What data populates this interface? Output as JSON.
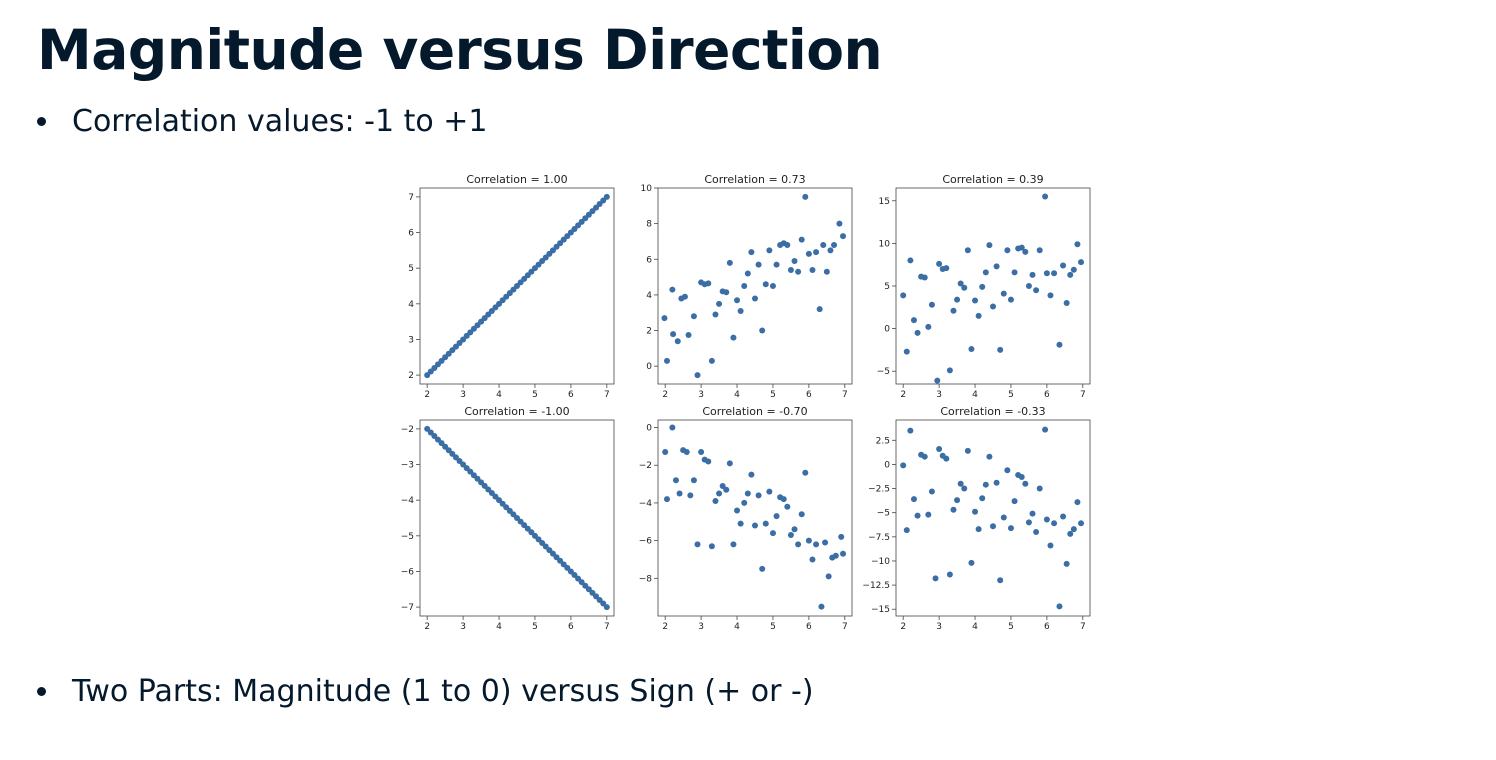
{
  "slide": {
    "title": "Magnitude versus Direction",
    "bullets": [
      "Correlation values: -1 to +1",
      "Two Parts: Magnitude (1 to 0) versus Sign (+ or -)"
    ]
  },
  "colors": {
    "marker": "#3a6ea5",
    "text": "#05192d"
  },
  "chart_data": [
    {
      "type": "scatter",
      "title": "Correlation = 1.00",
      "xlim": [
        1.8,
        7.2
      ],
      "ylim": [
        1.75,
        7.25
      ],
      "xticks": [
        2,
        3,
        4,
        5,
        6,
        7
      ],
      "yticks": [
        2,
        3,
        4,
        5,
        6,
        7
      ],
      "points": [
        [
          2,
          2
        ],
        [
          2.1,
          2.1
        ],
        [
          2.2,
          2.2
        ],
        [
          2.3,
          2.3
        ],
        [
          2.4,
          2.4
        ],
        [
          2.5,
          2.5
        ],
        [
          2.6,
          2.6
        ],
        [
          2.7,
          2.7
        ],
        [
          2.8,
          2.8
        ],
        [
          2.9,
          2.9
        ],
        [
          3,
          3
        ],
        [
          3.1,
          3.1
        ],
        [
          3.2,
          3.2
        ],
        [
          3.3,
          3.3
        ],
        [
          3.4,
          3.4
        ],
        [
          3.5,
          3.5
        ],
        [
          3.6,
          3.6
        ],
        [
          3.7,
          3.7
        ],
        [
          3.8,
          3.8
        ],
        [
          3.9,
          3.9
        ],
        [
          4,
          4
        ],
        [
          4.1,
          4.1
        ],
        [
          4.2,
          4.2
        ],
        [
          4.3,
          4.3
        ],
        [
          4.4,
          4.4
        ],
        [
          4.5,
          4.5
        ],
        [
          4.6,
          4.6
        ],
        [
          4.7,
          4.7
        ],
        [
          4.8,
          4.8
        ],
        [
          4.9,
          4.9
        ],
        [
          5,
          5
        ],
        [
          5.1,
          5.1
        ],
        [
          5.2,
          5.2
        ],
        [
          5.3,
          5.3
        ],
        [
          5.4,
          5.4
        ],
        [
          5.5,
          5.5
        ],
        [
          5.6,
          5.6
        ],
        [
          5.7,
          5.7
        ],
        [
          5.8,
          5.8
        ],
        [
          5.9,
          5.9
        ],
        [
          6,
          6
        ],
        [
          6.1,
          6.1
        ],
        [
          6.2,
          6.2
        ],
        [
          6.3,
          6.3
        ],
        [
          6.4,
          6.4
        ],
        [
          6.5,
          6.5
        ],
        [
          6.6,
          6.6
        ],
        [
          6.7,
          6.7
        ],
        [
          6.8,
          6.8
        ],
        [
          6.9,
          6.9
        ],
        [
          7,
          7
        ]
      ]
    },
    {
      "type": "scatter",
      "title": "Correlation = 0.73",
      "xlim": [
        1.8,
        7.2
      ],
      "ylim": [
        -1.0,
        10.0
      ],
      "xticks": [
        2,
        3,
        4,
        5,
        6,
        7
      ],
      "yticks": [
        0,
        2,
        4,
        6,
        8,
        10
      ],
      "points": [
        [
          1.98,
          2.7
        ],
        [
          2.05,
          0.3
        ],
        [
          2.2,
          4.3
        ],
        [
          2.22,
          1.8
        ],
        [
          2.35,
          1.4
        ],
        [
          2.45,
          3.8
        ],
        [
          2.55,
          3.9
        ],
        [
          2.65,
          1.75
        ],
        [
          2.8,
          2.8
        ],
        [
          2.9,
          -0.5
        ],
        [
          3.0,
          4.7
        ],
        [
          3.1,
          4.6
        ],
        [
          3.2,
          4.65
        ],
        [
          3.3,
          0.3
        ],
        [
          3.4,
          2.9
        ],
        [
          3.5,
          3.5
        ],
        [
          3.6,
          4.2
        ],
        [
          3.7,
          4.15
        ],
        [
          3.8,
          5.8
        ],
        [
          3.9,
          1.6
        ],
        [
          4.0,
          3.7
        ],
        [
          4.1,
          3.1
        ],
        [
          4.2,
          4.5
        ],
        [
          4.3,
          5.2
        ],
        [
          4.4,
          6.4
        ],
        [
          4.5,
          3.8
        ],
        [
          4.6,
          5.7
        ],
        [
          4.7,
          2.0
        ],
        [
          4.8,
          4.6
        ],
        [
          4.9,
          6.5
        ],
        [
          5.0,
          4.5
        ],
        [
          5.1,
          5.7
        ],
        [
          5.2,
          6.8
        ],
        [
          5.3,
          6.9
        ],
        [
          5.4,
          6.8
        ],
        [
          5.5,
          5.4
        ],
        [
          5.6,
          5.9
        ],
        [
          5.7,
          5.3
        ],
        [
          5.8,
          7.1
        ],
        [
          5.9,
          9.5
        ],
        [
          6.0,
          6.3
        ],
        [
          6.1,
          5.4
        ],
        [
          6.2,
          6.4
        ],
        [
          6.3,
          3.2
        ],
        [
          6.4,
          6.8
        ],
        [
          6.5,
          5.3
        ],
        [
          6.6,
          6.5
        ],
        [
          6.7,
          6.8
        ],
        [
          6.85,
          8.0
        ],
        [
          6.95,
          7.3
        ]
      ]
    },
    {
      "type": "scatter",
      "title": "Correlation = 0.39",
      "xlim": [
        1.8,
        7.2
      ],
      "ylim": [
        -6.5,
        16.5
      ],
      "xticks": [
        2,
        3,
        4,
        5,
        6,
        7
      ],
      "yticks": [
        -5,
        0,
        5,
        10,
        15
      ],
      "points": [
        [
          2.0,
          3.9
        ],
        [
          2.1,
          -2.7
        ],
        [
          2.2,
          8.0
        ],
        [
          2.3,
          1.0
        ],
        [
          2.4,
          -0.5
        ],
        [
          2.5,
          6.1
        ],
        [
          2.6,
          6.0
        ],
        [
          2.7,
          0.2
        ],
        [
          2.8,
          2.8
        ],
        [
          2.95,
          -6.1
        ],
        [
          3.0,
          7.6
        ],
        [
          3.1,
          7.0
        ],
        [
          3.2,
          7.1
        ],
        [
          3.3,
          -4.9
        ],
        [
          3.4,
          2.1
        ],
        [
          3.5,
          3.4
        ],
        [
          3.6,
          5.3
        ],
        [
          3.7,
          4.8
        ],
        [
          3.8,
          9.2
        ],
        [
          3.9,
          -2.4
        ],
        [
          4.0,
          3.3
        ],
        [
          4.1,
          1.5
        ],
        [
          4.2,
          4.9
        ],
        [
          4.3,
          6.6
        ],
        [
          4.4,
          9.8
        ],
        [
          4.5,
          2.6
        ],
        [
          4.6,
          7.3
        ],
        [
          4.7,
          -2.5
        ],
        [
          4.8,
          4.1
        ],
        [
          4.9,
          9.2
        ],
        [
          5.0,
          3.4
        ],
        [
          5.1,
          6.6
        ],
        [
          5.2,
          9.4
        ],
        [
          5.3,
          9.5
        ],
        [
          5.4,
          9.0
        ],
        [
          5.5,
          5.0
        ],
        [
          5.6,
          6.3
        ],
        [
          5.7,
          4.5
        ],
        [
          5.8,
          9.2
        ],
        [
          5.95,
          15.5
        ],
        [
          6.0,
          6.5
        ],
        [
          6.1,
          3.9
        ],
        [
          6.2,
          6.5
        ],
        [
          6.35,
          -1.9
        ],
        [
          6.45,
          7.4
        ],
        [
          6.55,
          3.0
        ],
        [
          6.65,
          6.3
        ],
        [
          6.75,
          6.9
        ],
        [
          6.85,
          9.9
        ],
        [
          6.95,
          7.8
        ]
      ]
    },
    {
      "type": "scatter",
      "title": "Correlation = -1.00",
      "xlim": [
        1.8,
        7.2
      ],
      "ylim": [
        -7.25,
        -1.75
      ],
      "xticks": [
        2,
        3,
        4,
        5,
        6,
        7
      ],
      "yticks": [
        -2,
        -3,
        -4,
        -5,
        -6,
        -7
      ],
      "points": [
        [
          2,
          -2
        ],
        [
          2.1,
          -2.1
        ],
        [
          2.2,
          -2.2
        ],
        [
          2.3,
          -2.3
        ],
        [
          2.4,
          -2.4
        ],
        [
          2.5,
          -2.5
        ],
        [
          2.6,
          -2.6
        ],
        [
          2.7,
          -2.7
        ],
        [
          2.8,
          -2.8
        ],
        [
          2.9,
          -2.9
        ],
        [
          3,
          -3
        ],
        [
          3.1,
          -3.1
        ],
        [
          3.2,
          -3.2
        ],
        [
          3.3,
          -3.3
        ],
        [
          3.4,
          -3.4
        ],
        [
          3.5,
          -3.5
        ],
        [
          3.6,
          -3.6
        ],
        [
          3.7,
          -3.7
        ],
        [
          3.8,
          -3.8
        ],
        [
          3.9,
          -3.9
        ],
        [
          4,
          -4
        ],
        [
          4.1,
          -4.1
        ],
        [
          4.2,
          -4.2
        ],
        [
          4.3,
          -4.3
        ],
        [
          4.4,
          -4.4
        ],
        [
          4.5,
          -4.5
        ],
        [
          4.6,
          -4.6
        ],
        [
          4.7,
          -4.7
        ],
        [
          4.8,
          -4.8
        ],
        [
          4.9,
          -4.9
        ],
        [
          5,
          -5
        ],
        [
          5.1,
          -5.1
        ],
        [
          5.2,
          -5.2
        ],
        [
          5.3,
          -5.3
        ],
        [
          5.4,
          -5.4
        ],
        [
          5.5,
          -5.5
        ],
        [
          5.6,
          -5.6
        ],
        [
          5.7,
          -5.7
        ],
        [
          5.8,
          -5.8
        ],
        [
          5.9,
          -5.9
        ],
        [
          6,
          -6
        ],
        [
          6.1,
          -6.1
        ],
        [
          6.2,
          -6.2
        ],
        [
          6.3,
          -6.3
        ],
        [
          6.4,
          -6.4
        ],
        [
          6.5,
          -6.5
        ],
        [
          6.6,
          -6.6
        ],
        [
          6.7,
          -6.7
        ],
        [
          6.8,
          -6.8
        ],
        [
          6.9,
          -6.9
        ],
        [
          7,
          -7
        ]
      ]
    },
    {
      "type": "scatter",
      "title": "Correlation = -0.70",
      "xlim": [
        1.8,
        7.2
      ],
      "ylim": [
        -10.0,
        0.4
      ],
      "xticks": [
        2,
        3,
        4,
        5,
        6,
        7
      ],
      "yticks": [
        0,
        -2,
        -4,
        -6,
        -8
      ],
      "points": [
        [
          2.0,
          -1.3
        ],
        [
          2.05,
          -3.8
        ],
        [
          2.2,
          0.0
        ],
        [
          2.3,
          -2.8
        ],
        [
          2.4,
          -3.5
        ],
        [
          2.5,
          -1.2
        ],
        [
          2.6,
          -1.3
        ],
        [
          2.7,
          -3.6
        ],
        [
          2.8,
          -2.8
        ],
        [
          2.9,
          -6.2
        ],
        [
          3.0,
          -1.3
        ],
        [
          3.1,
          -1.7
        ],
        [
          3.2,
          -1.8
        ],
        [
          3.3,
          -6.3
        ],
        [
          3.4,
          -3.9
        ],
        [
          3.5,
          -3.5
        ],
        [
          3.6,
          -3.1
        ],
        [
          3.7,
          -3.3
        ],
        [
          3.8,
          -1.9
        ],
        [
          3.9,
          -6.2
        ],
        [
          4.0,
          -4.4
        ],
        [
          4.1,
          -5.1
        ],
        [
          4.2,
          -4.0
        ],
        [
          4.3,
          -3.5
        ],
        [
          4.4,
          -2.5
        ],
        [
          4.5,
          -5.2
        ],
        [
          4.6,
          -3.6
        ],
        [
          4.7,
          -7.5
        ],
        [
          4.8,
          -5.1
        ],
        [
          4.9,
          -3.4
        ],
        [
          5.0,
          -5.6
        ],
        [
          5.1,
          -4.7
        ],
        [
          5.2,
          -3.7
        ],
        [
          5.3,
          -3.8
        ],
        [
          5.4,
          -4.2
        ],
        [
          5.5,
          -5.7
        ],
        [
          5.6,
          -5.4
        ],
        [
          5.7,
          -6.2
        ],
        [
          5.8,
          -4.6
        ],
        [
          5.9,
          -2.4
        ],
        [
          6.0,
          -6.0
        ],
        [
          6.1,
          -7.0
        ],
        [
          6.2,
          -6.2
        ],
        [
          6.35,
          -9.5
        ],
        [
          6.45,
          -6.1
        ],
        [
          6.55,
          -7.9
        ],
        [
          6.65,
          -6.9
        ],
        [
          6.75,
          -6.8
        ],
        [
          6.9,
          -5.8
        ],
        [
          6.95,
          -6.7
        ]
      ]
    },
    {
      "type": "scatter",
      "title": "Correlation = -0.33",
      "xlim": [
        1.8,
        7.2
      ],
      "ylim": [
        -15.7,
        4.6
      ],
      "xticks": [
        2,
        3,
        4,
        5,
        6,
        7
      ],
      "yticks": [
        2.5,
        0.0,
        -2.5,
        -5.0,
        -7.5,
        -10.0,
        -12.5,
        -15.0
      ],
      "points": [
        [
          2.0,
          -0.1
        ],
        [
          2.1,
          -6.8
        ],
        [
          2.2,
          3.5
        ],
        [
          2.3,
          -3.6
        ],
        [
          2.4,
          -5.3
        ],
        [
          2.5,
          1.0
        ],
        [
          2.6,
          0.8
        ],
        [
          2.7,
          -5.2
        ],
        [
          2.8,
          -2.8
        ],
        [
          2.9,
          -11.8
        ],
        [
          3.0,
          1.6
        ],
        [
          3.1,
          0.9
        ],
        [
          3.2,
          0.6
        ],
        [
          3.3,
          -11.4
        ],
        [
          3.4,
          -4.7
        ],
        [
          3.5,
          -3.7
        ],
        [
          3.6,
          -2.0
        ],
        [
          3.7,
          -2.5
        ],
        [
          3.8,
          1.4
        ],
        [
          3.9,
          -10.2
        ],
        [
          4.0,
          -4.9
        ],
        [
          4.1,
          -6.7
        ],
        [
          4.2,
          -3.5
        ],
        [
          4.3,
          -2.1
        ],
        [
          4.4,
          0.8
        ],
        [
          4.5,
          -6.4
        ],
        [
          4.6,
          -1.9
        ],
        [
          4.7,
          -12.0
        ],
        [
          4.8,
          -5.5
        ],
        [
          4.9,
          -0.6
        ],
        [
          5.0,
          -6.6
        ],
        [
          5.1,
          -3.8
        ],
        [
          5.2,
          -1.1
        ],
        [
          5.3,
          -1.3
        ],
        [
          5.4,
          -2.0
        ],
        [
          5.5,
          -6.0
        ],
        [
          5.6,
          -5.1
        ],
        [
          5.7,
          -7.0
        ],
        [
          5.8,
          -2.5
        ],
        [
          5.95,
          3.6
        ],
        [
          6.0,
          -5.7
        ],
        [
          6.1,
          -8.4
        ],
        [
          6.2,
          -6.1
        ],
        [
          6.35,
          -14.7
        ],
        [
          6.45,
          -5.4
        ],
        [
          6.55,
          -10.3
        ],
        [
          6.65,
          -7.2
        ],
        [
          6.75,
          -6.7
        ],
        [
          6.85,
          -3.9
        ],
        [
          6.95,
          -6.1
        ]
      ]
    }
  ]
}
